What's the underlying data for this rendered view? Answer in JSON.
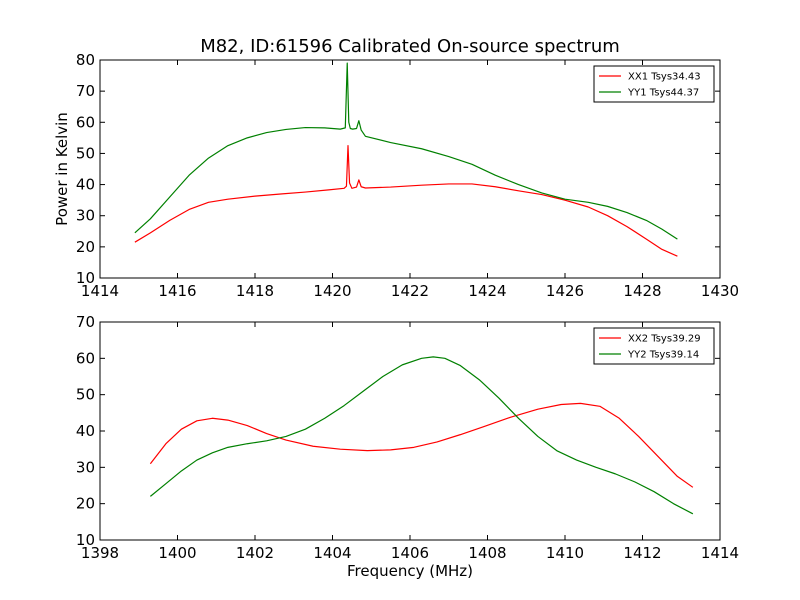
{
  "chart_data": [
    {
      "type": "line",
      "title": "M82, ID:61596 Calibrated On-source spectrum",
      "xlabel": "",
      "ylabel": "Power in Kelvin",
      "xlim": [
        1414,
        1430
      ],
      "ylim": [
        10,
        80
      ],
      "xticks": [
        1414,
        1416,
        1418,
        1420,
        1422,
        1424,
        1426,
        1428,
        1430
      ],
      "yticks": [
        10,
        20,
        30,
        40,
        50,
        60,
        70,
        80
      ],
      "legend_position": "top-right",
      "grid": false,
      "series": [
        {
          "name": "XX1 Tsys34.43",
          "color": "#ff0000",
          "x": [
            1414.9,
            1415.3,
            1415.8,
            1416.3,
            1416.8,
            1417.3,
            1418.0,
            1418.7,
            1419.3,
            1419.9,
            1420.3,
            1420.36,
            1420.4,
            1420.44,
            1420.5,
            1420.62,
            1420.68,
            1420.74,
            1420.85,
            1421.5,
            1422.3,
            1423.0,
            1423.6,
            1424.2,
            1424.8,
            1425.4,
            1426.0,
            1426.6,
            1427.1,
            1427.6,
            1428.1,
            1428.5,
            1428.9
          ],
          "y": [
            21.5,
            24.5,
            28.5,
            32.0,
            34.3,
            35.3,
            36.3,
            37.0,
            37.6,
            38.3,
            38.8,
            39.5,
            52.5,
            40.5,
            38.8,
            39.2,
            41.5,
            39.3,
            38.9,
            39.2,
            39.8,
            40.2,
            40.2,
            39.3,
            38.0,
            36.8,
            35.0,
            32.8,
            30.0,
            26.5,
            22.5,
            19.2,
            17.0
          ]
        },
        {
          "name": "YY1 Tsys44.37",
          "color": "#008000",
          "x": [
            1414.9,
            1415.3,
            1415.8,
            1416.3,
            1416.8,
            1417.3,
            1417.8,
            1418.3,
            1418.8,
            1419.3,
            1419.8,
            1420.2,
            1420.33,
            1420.38,
            1420.42,
            1420.46,
            1420.52,
            1420.62,
            1420.68,
            1420.74,
            1420.85,
            1421.5,
            1422.3,
            1423.0,
            1423.6,
            1424.2,
            1424.8,
            1425.4,
            1426.0,
            1426.6,
            1427.1,
            1427.6,
            1428.1,
            1428.5,
            1428.9
          ],
          "y": [
            24.5,
            29.0,
            36.0,
            43.0,
            48.5,
            52.5,
            55.0,
            56.7,
            57.7,
            58.3,
            58.2,
            57.8,
            58.2,
            79.0,
            60.0,
            58.0,
            57.8,
            58.0,
            60.5,
            57.5,
            55.5,
            53.5,
            51.5,
            49.0,
            46.5,
            43.0,
            40.0,
            37.3,
            35.3,
            34.3,
            33.0,
            31.0,
            28.5,
            25.7,
            22.5
          ]
        }
      ]
    },
    {
      "type": "line",
      "title": "",
      "xlabel": "Frequency (MHz)",
      "ylabel": "",
      "xlim": [
        1398,
        1414
      ],
      "ylim": [
        10,
        70
      ],
      "xticks": [
        1398,
        1400,
        1402,
        1404,
        1406,
        1408,
        1410,
        1412,
        1414
      ],
      "yticks": [
        10,
        20,
        30,
        40,
        50,
        60,
        70
      ],
      "legend_position": "top-right",
      "grid": false,
      "series": [
        {
          "name": "XX2 Tsys39.29",
          "color": "#ff0000",
          "x": [
            1399.3,
            1399.7,
            1400.1,
            1400.5,
            1400.9,
            1401.3,
            1401.8,
            1402.3,
            1402.8,
            1403.5,
            1404.2,
            1404.9,
            1405.5,
            1406.1,
            1406.7,
            1407.3,
            1407.9,
            1408.6,
            1409.3,
            1409.9,
            1410.4,
            1410.9,
            1411.4,
            1411.9,
            1412.4,
            1412.9,
            1413.3
          ],
          "y": [
            31.0,
            36.5,
            40.5,
            42.8,
            43.5,
            43.0,
            41.5,
            39.3,
            37.5,
            35.8,
            35.0,
            34.6,
            34.8,
            35.5,
            37.0,
            39.0,
            41.2,
            43.8,
            46.0,
            47.3,
            47.6,
            46.8,
            43.5,
            38.5,
            33.0,
            27.5,
            24.5
          ]
        },
        {
          "name": "YY2 Tsys39.14",
          "color": "#008000",
          "x": [
            1399.3,
            1399.7,
            1400.1,
            1400.5,
            1400.9,
            1401.3,
            1401.8,
            1402.3,
            1402.8,
            1403.3,
            1403.8,
            1404.3,
            1404.8,
            1405.3,
            1405.8,
            1406.3,
            1406.6,
            1406.9,
            1407.3,
            1407.8,
            1408.3,
            1408.8,
            1409.3,
            1409.8,
            1410.3,
            1410.8,
            1411.3,
            1411.8,
            1412.3,
            1412.8,
            1413.3
          ],
          "y": [
            22.0,
            25.5,
            29.0,
            32.0,
            34.0,
            35.5,
            36.5,
            37.3,
            38.5,
            40.5,
            43.5,
            47.0,
            51.0,
            55.0,
            58.2,
            60.0,
            60.4,
            60.0,
            58.0,
            54.0,
            49.0,
            43.5,
            38.5,
            34.5,
            32.0,
            30.0,
            28.2,
            26.0,
            23.3,
            20.0,
            17.2
          ]
        }
      ]
    }
  ]
}
